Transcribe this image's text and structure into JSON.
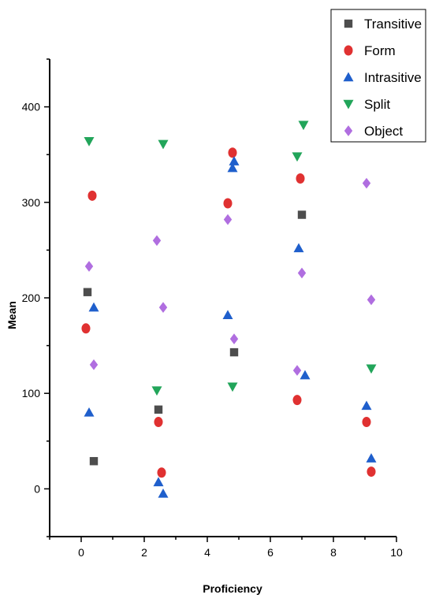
{
  "chart_data": {
    "type": "scatter",
    "title": "",
    "xlabel": "Proficiency",
    "ylabel": "Mean",
    "xlim": [
      -1,
      10
    ],
    "ylim": [
      -50,
      450
    ],
    "xticks": [
      0,
      2,
      4,
      6,
      8,
      10
    ],
    "yticks": [
      0,
      100,
      200,
      300,
      400
    ],
    "grid": false,
    "legend_position": "top-right",
    "series": [
      {
        "name": "Transitive",
        "marker": "square",
        "color": "#4d4d4d",
        "points": [
          [
            0.2,
            206
          ],
          [
            0.4,
            29
          ],
          [
            2.45,
            83
          ],
          [
            4.85,
            143
          ],
          [
            7.0,
            287
          ]
        ]
      },
      {
        "name": "Form",
        "marker": "circle",
        "color": "#e03131",
        "points": [
          [
            0.15,
            168
          ],
          [
            0.35,
            307
          ],
          [
            2.45,
            70
          ],
          [
            2.55,
            17
          ],
          [
            4.65,
            299
          ],
          [
            4.8,
            352
          ],
          [
            6.85,
            93
          ],
          [
            6.95,
            325
          ],
          [
            9.05,
            70
          ],
          [
            9.2,
            18
          ]
        ]
      },
      {
        "name": "Intrasitive",
        "marker": "triangle-up",
        "color": "#1f5fcc",
        "points": [
          [
            0.25,
            80
          ],
          [
            0.4,
            190
          ],
          [
            2.45,
            7
          ],
          [
            2.6,
            -5
          ],
          [
            4.65,
            182
          ],
          [
            4.8,
            336
          ],
          [
            4.85,
            343
          ],
          [
            6.9,
            252
          ],
          [
            7.1,
            119
          ],
          [
            9.05,
            87
          ],
          [
            9.2,
            32
          ]
        ]
      },
      {
        "name": "Split",
        "marker": "triangle-down",
        "color": "#22a55a",
        "points": [
          [
            0.25,
            364
          ],
          [
            2.4,
            103
          ],
          [
            2.6,
            361
          ],
          [
            4.8,
            107
          ],
          [
            6.85,
            348
          ],
          [
            7.05,
            381
          ],
          [
            9.2,
            126
          ]
        ]
      },
      {
        "name": "Object",
        "marker": "diamond",
        "color": "#b06ee0",
        "points": [
          [
            0.25,
            233
          ],
          [
            0.4,
            130
          ],
          [
            2.4,
            260
          ],
          [
            2.6,
            190
          ],
          [
            4.65,
            282
          ],
          [
            4.85,
            157
          ],
          [
            6.85,
            124
          ],
          [
            7.0,
            226
          ],
          [
            9.05,
            320
          ],
          [
            9.2,
            198
          ]
        ]
      }
    ]
  }
}
